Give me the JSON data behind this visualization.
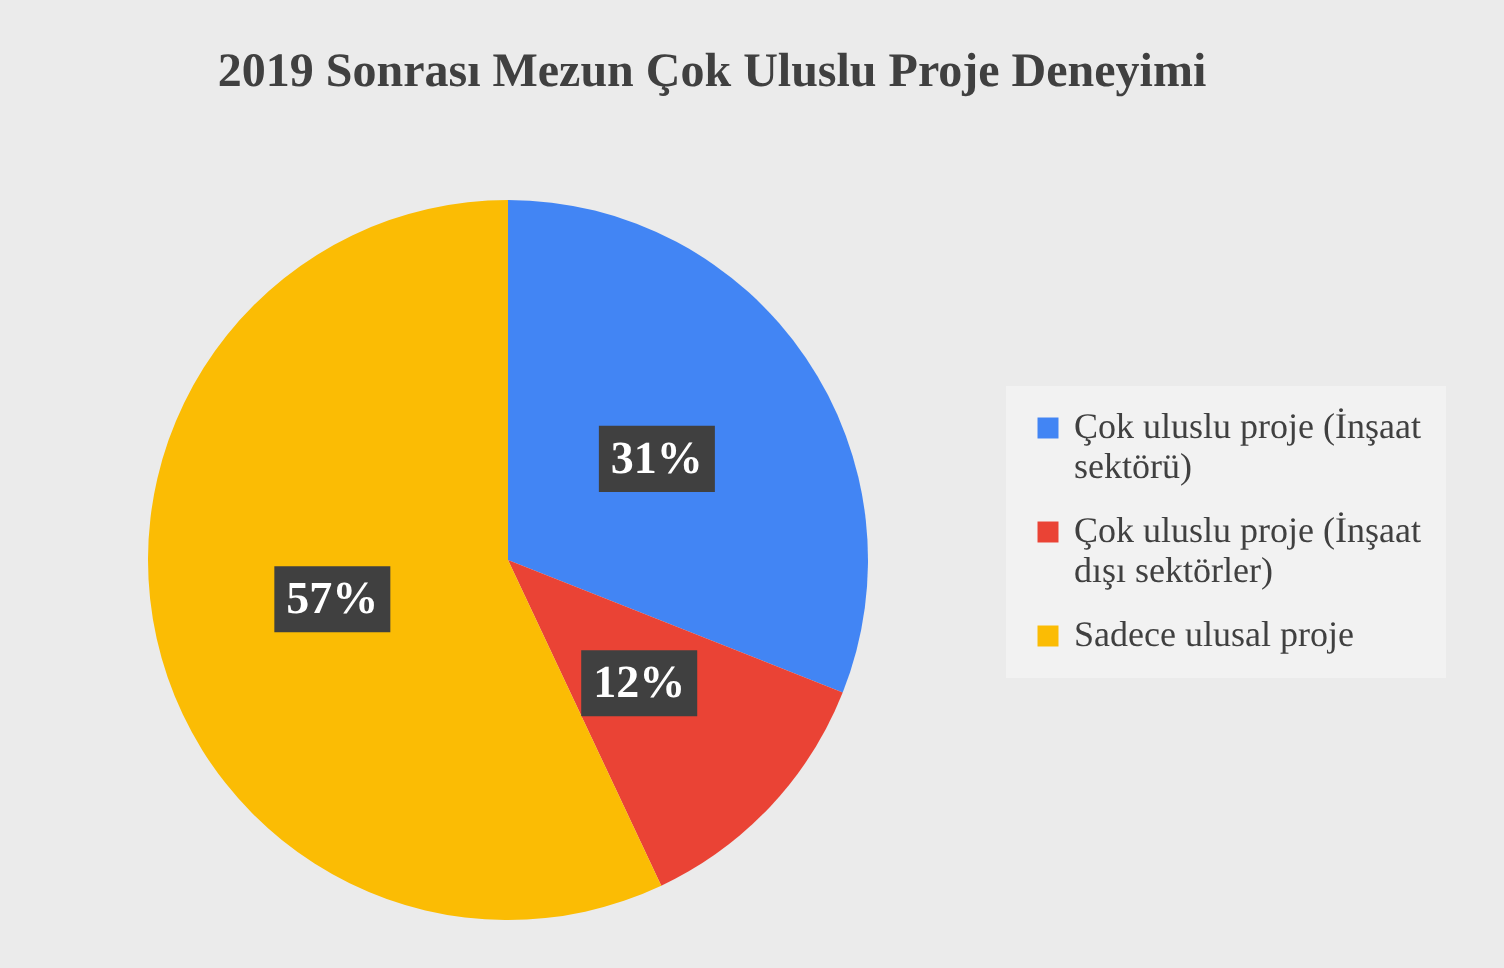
{
  "chart_data": {
    "type": "pie",
    "title": "2019 Sonrası Mezun Çok Uluslu Proje Deneyimi",
    "categories": [
      "Çok uluslu proje (İnşaat sektörü)",
      "Çok uluslu proje (İnşaat dışı sektörler)",
      "Sadece ulusal proje"
    ],
    "values": [
      31,
      12,
      57
    ],
    "colors": [
      "#4285f4",
      "#ea4335",
      "#fbbc04"
    ],
    "value_labels": [
      "31%",
      "12%",
      "57%"
    ],
    "legend": "right"
  }
}
